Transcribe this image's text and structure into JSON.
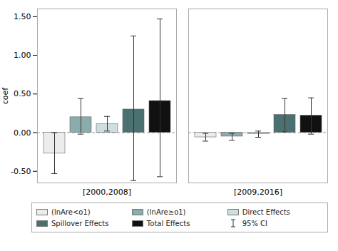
{
  "chart_data": {
    "type": "bar",
    "ylabel": "coef",
    "categories": [
      "[2000,2008]",
      "[2009,2016]"
    ],
    "series": [
      {
        "name": "(lnAre<o1)",
        "color": "#ececec",
        "values": [
          -0.27,
          -0.06
        ],
        "ci_lo": [
          -0.53,
          -0.11
        ],
        "ci_hi": [
          0.0,
          -0.01
        ]
      },
      {
        "name": "(lnAre≥o1)",
        "color": "#8aacac",
        "values": [
          0.2,
          -0.05
        ],
        "ci_lo": [
          -0.02,
          -0.1
        ],
        "ci_hi": [
          0.44,
          -0.01
        ]
      },
      {
        "name": "Direct Effects",
        "color": "#ccdede",
        "values": [
          0.11,
          -0.02
        ],
        "ci_lo": [
          0.02,
          -0.06
        ],
        "ci_hi": [
          0.21,
          0.02
        ]
      },
      {
        "name": "Spillover Effects",
        "color": "#4a7070",
        "values": [
          0.3,
          0.23
        ],
        "ci_lo": [
          -0.62,
          0.01
        ],
        "ci_hi": [
          1.25,
          0.44
        ]
      },
      {
        "name": "Total Effects",
        "color": "#111111",
        "values": [
          0.41,
          0.22
        ],
        "ci_lo": [
          -0.57,
          -0.02
        ],
        "ci_hi": [
          1.47,
          0.45
        ]
      }
    ],
    "error_bar_label": "95% CI",
    "ylim": [
      -0.65,
      1.6
    ],
    "yticks": [
      {
        "value": -0.5,
        "label": "-0.50"
      },
      {
        "value": 0,
        "label": "0.00"
      },
      {
        "value": 0.5,
        "label": "0.50"
      },
      {
        "value": 1,
        "label": "1.00"
      },
      {
        "value": 1.5,
        "label": "1.50"
      }
    ],
    "grid": false,
    "legend": "bottom"
  }
}
